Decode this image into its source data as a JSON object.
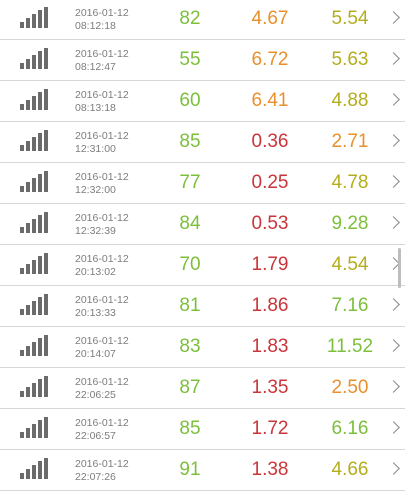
{
  "colors": {
    "green": "#7cbf3b",
    "orange": "#e8902e",
    "red": "#c9353a",
    "olive": "#b4ad1e",
    "signal_bar": "#6b6b6b",
    "timestamp": "#7d7d7d"
  },
  "rows": [
    {
      "date": "2016-01-12",
      "time": "08:12:18",
      "score": "82",
      "score_color": "#7cbf3b",
      "v1": "4.67",
      "v1_color": "#e8902e",
      "v2": "5.54",
      "v2_color": "#b4ad1e"
    },
    {
      "date": "2016-01-12",
      "time": "08:12:47",
      "score": "55",
      "score_color": "#7cbf3b",
      "v1": "6.72",
      "v1_color": "#e8902e",
      "v2": "5.63",
      "v2_color": "#b4ad1e"
    },
    {
      "date": "2016-01-12",
      "time": "08:13:18",
      "score": "60",
      "score_color": "#7cbf3b",
      "v1": "6.41",
      "v1_color": "#e8902e",
      "v2": "4.88",
      "v2_color": "#b4ad1e"
    },
    {
      "date": "2016-01-12",
      "time": "12:31:00",
      "score": "85",
      "score_color": "#7cbf3b",
      "v1": "0.36",
      "v1_color": "#c9353a",
      "v2": "2.71",
      "v2_color": "#e8902e"
    },
    {
      "date": "2016-01-12",
      "time": "12:32:00",
      "score": "77",
      "score_color": "#7cbf3b",
      "v1": "0.25",
      "v1_color": "#c9353a",
      "v2": "4.78",
      "v2_color": "#b4ad1e"
    },
    {
      "date": "2016-01-12",
      "time": "12:32:39",
      "score": "84",
      "score_color": "#7cbf3b",
      "v1": "0.53",
      "v1_color": "#c9353a",
      "v2": "9.28",
      "v2_color": "#7cbf3b"
    },
    {
      "date": "2016-01-12",
      "time": "20:13:02",
      "score": "70",
      "score_color": "#7cbf3b",
      "v1": "1.79",
      "v1_color": "#c9353a",
      "v2": "4.54",
      "v2_color": "#b4ad1e"
    },
    {
      "date": "2016-01-12",
      "time": "20:13:33",
      "score": "81",
      "score_color": "#7cbf3b",
      "v1": "1.86",
      "v1_color": "#c9353a",
      "v2": "7.16",
      "v2_color": "#7cbf3b"
    },
    {
      "date": "2016-01-12",
      "time": "20:14:07",
      "score": "83",
      "score_color": "#7cbf3b",
      "v1": "1.83",
      "v1_color": "#c9353a",
      "v2": "11.52",
      "v2_color": "#7cbf3b"
    },
    {
      "date": "2016-01-12",
      "time": "22:06:25",
      "score": "87",
      "score_color": "#7cbf3b",
      "v1": "1.35",
      "v1_color": "#c9353a",
      "v2": "2.50",
      "v2_color": "#e8902e"
    },
    {
      "date": "2016-01-12",
      "time": "22:06:57",
      "score": "85",
      "score_color": "#7cbf3b",
      "v1": "1.72",
      "v1_color": "#c9353a",
      "v2": "6.16",
      "v2_color": "#7cbf3b"
    },
    {
      "date": "2016-01-12",
      "time": "22:07:26",
      "score": "91",
      "score_color": "#7cbf3b",
      "v1": "1.38",
      "v1_color": "#c9353a",
      "v2": "4.66",
      "v2_color": "#b4ad1e"
    }
  ]
}
